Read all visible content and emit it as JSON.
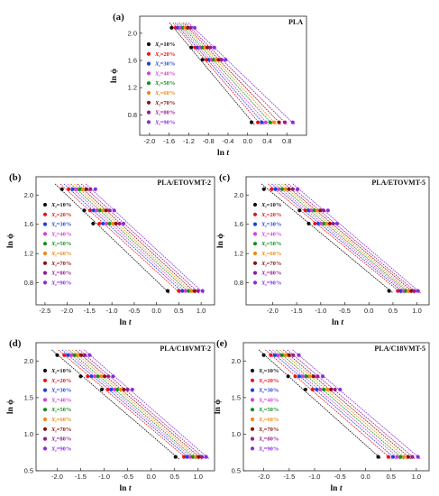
{
  "colors": {
    "X10": "#111111",
    "X20": "#e8141b",
    "X30": "#1f3fe0",
    "X40": "#d640d6",
    "X50": "#0f8f1a",
    "X60": "#f08a12",
    "X70": "#8b1010",
    "X80": "#9a1a8c",
    "X90": "#8a2be2"
  },
  "chart_data": [
    {
      "panel": "(a)",
      "title": "PLA",
      "type": "scatter",
      "xlabel": "ln t",
      "ylabel": "ln ϕ",
      "xlim": [
        -2.2,
        1.2
      ],
      "ylim": [
        0.5,
        2.25
      ],
      "xticks": [
        "-2.0",
        "-1.6",
        "-1.2",
        "-0.8",
        "-0.4",
        "0.0",
        "0.4",
        "0.8"
      ],
      "xtick_values": [
        -2.0,
        -1.6,
        -1.2,
        -0.8,
        -0.4,
        0.0,
        0.4,
        0.8
      ],
      "yticks": [
        "0.8",
        "1.2",
        "1.6",
        "2.0"
      ],
      "ytick_values": [
        0.8,
        1.2,
        1.6,
        2.0
      ],
      "y_levels": [
        2.08,
        1.79,
        1.61,
        0.69
      ],
      "series": [
        {
          "name": "X_t=10%",
          "color": "#111111",
          "x": [
            -1.55,
            -1.15,
            -0.92,
            0.08
          ]
        },
        {
          "name": "X_t=20%",
          "color": "#e8141b",
          "x": [
            -1.47,
            -1.07,
            -0.84,
            0.21
          ]
        },
        {
          "name": "X_t=30%",
          "color": "#1f3fe0",
          "x": [
            -1.42,
            -1.02,
            -0.79,
            0.29
          ]
        },
        {
          "name": "X_t=40%",
          "color": "#d640d6",
          "x": [
            -1.37,
            -0.97,
            -0.74,
            0.37
          ]
        },
        {
          "name": "X_t=50%",
          "color": "#0f8f1a",
          "x": [
            -1.32,
            -0.92,
            -0.69,
            0.46
          ]
        },
        {
          "name": "X_t=60%",
          "color": "#f08a12",
          "x": [
            -1.27,
            -0.87,
            -0.64,
            0.54
          ]
        },
        {
          "name": "X_t=70%",
          "color": "#8b1010",
          "x": [
            -1.22,
            -0.82,
            -0.59,
            0.64
          ]
        },
        {
          "name": "X_t=80%",
          "color": "#9a1a8c",
          "x": [
            -1.16,
            -0.76,
            -0.53,
            0.76
          ]
        },
        {
          "name": "X_t=90%",
          "color": "#8a2be2",
          "x": [
            -1.08,
            -0.68,
            -0.45,
            0.92
          ]
        }
      ]
    },
    {
      "panel": "(b)",
      "title": "PLA/ETOVMT-2",
      "type": "scatter",
      "xlabel": "ln t",
      "ylabel": "ln ϕ",
      "xlim": [
        -2.7,
        1.3
      ],
      "ylim": [
        0.5,
        2.25
      ],
      "xticks": [
        "-2.5",
        "-2.0",
        "-1.5",
        "-1.0",
        "-0.5",
        "0.0",
        "0.5",
        "1.0"
      ],
      "xtick_values": [
        -2.5,
        -2.0,
        -1.5,
        -1.0,
        -0.5,
        0.0,
        0.5,
        1.0
      ],
      "yticks": [
        "0.8",
        "1.2",
        "1.6",
        "2.0"
      ],
      "ytick_values": [
        0.8,
        1.2,
        1.6,
        2.0
      ],
      "y_levels": [
        2.08,
        1.79,
        1.61,
        0.69
      ],
      "series": [
        {
          "name": "X_t=10%",
          "color": "#111111",
          "x": [
            -2.12,
            -1.62,
            -1.42,
            0.25
          ]
        },
        {
          "name": "X_t=20%",
          "color": "#e8141b",
          "x": [
            -1.97,
            -1.49,
            -1.28,
            0.5
          ]
        },
        {
          "name": "X_t=30%",
          "color": "#1f3fe0",
          "x": [
            -1.88,
            -1.41,
            -1.2,
            0.58
          ]
        },
        {
          "name": "X_t=40%",
          "color": "#d640d6",
          "x": [
            -1.8,
            -1.34,
            -1.12,
            0.65
          ]
        },
        {
          "name": "X_t=50%",
          "color": "#0f8f1a",
          "x": [
            -1.72,
            -1.27,
            -1.05,
            0.72
          ]
        },
        {
          "name": "X_t=60%",
          "color": "#f08a12",
          "x": [
            -1.65,
            -1.2,
            -0.98,
            0.78
          ]
        },
        {
          "name": "X_t=70%",
          "color": "#8b1010",
          "x": [
            -1.57,
            -1.13,
            -0.91,
            0.85
          ]
        },
        {
          "name": "X_t=80%",
          "color": "#9a1a8c",
          "x": [
            -1.48,
            -1.05,
            -0.83,
            0.93
          ]
        },
        {
          "name": "X_t=90%",
          "color": "#8a2be2",
          "x": [
            -1.37,
            -0.95,
            -0.74,
            1.03
          ]
        }
      ]
    },
    {
      "panel": "(c)",
      "title": "PLA/ETOVMT-5",
      "type": "scatter",
      "xlabel": "ln t",
      "ylabel": "ln ϕ",
      "xlim": [
        -2.55,
        1.25
      ],
      "ylim": [
        0.5,
        2.25
      ],
      "xticks": [
        "-2.0",
        "-1.5",
        "-1.0",
        "-0.5",
        "0.0",
        "0.5",
        "1.0"
      ],
      "xtick_values": [
        -2.0,
        -1.5,
        -1.0,
        -0.5,
        0.0,
        0.5,
        1.0
      ],
      "yticks": [
        "0.8",
        "1.2",
        "1.6",
        "2.0"
      ],
      "ytick_values": [
        0.8,
        1.2,
        1.6,
        2.0
      ],
      "y_levels": [
        2.08,
        1.79,
        1.61,
        0.69
      ],
      "series": [
        {
          "name": "X_t=10%",
          "color": "#111111",
          "x": [
            -2.18,
            -1.44,
            -1.25,
            0.42
          ]
        },
        {
          "name": "X_t=20%",
          "color": "#e8141b",
          "x": [
            -2.02,
            -1.32,
            -1.12,
            0.6
          ]
        },
        {
          "name": "X_t=30%",
          "color": "#1f3fe0",
          "x": [
            -1.94,
            -1.25,
            -1.05,
            0.66
          ]
        },
        {
          "name": "X_t=40%",
          "color": "#d640d6",
          "x": [
            -1.87,
            -1.19,
            -0.99,
            0.72
          ]
        },
        {
          "name": "X_t=50%",
          "color": "#0f8f1a",
          "x": [
            -1.8,
            -1.13,
            -0.93,
            0.77
          ]
        },
        {
          "name": "X_t=60%",
          "color": "#f08a12",
          "x": [
            -1.73,
            -1.07,
            -0.87,
            0.82
          ]
        },
        {
          "name": "X_t=70%",
          "color": "#8b1010",
          "x": [
            -1.66,
            -1.01,
            -0.81,
            0.88
          ]
        },
        {
          "name": "X_t=80%",
          "color": "#9a1a8c",
          "x": [
            -1.58,
            -0.94,
            -0.74,
            0.94
          ]
        },
        {
          "name": "X_t=90%",
          "color": "#8a2be2",
          "x": [
            -1.48,
            -0.85,
            -0.66,
            1.02
          ]
        }
      ]
    },
    {
      "panel": "(d)",
      "title": "PLA/C18VMT-2",
      "type": "scatter",
      "xlabel": "ln t",
      "ylabel": "ln ϕ",
      "xlim": [
        -2.45,
        1.35
      ],
      "ylim": [
        0.5,
        2.25
      ],
      "xticks": [
        "-2.0",
        "-1.5",
        "-1.0",
        "-0.5",
        "0.0",
        "0.5",
        "1.0"
      ],
      "xtick_values": [
        -2.0,
        -1.5,
        -1.0,
        -0.5,
        0.0,
        0.5,
        1.0
      ],
      "yticks": [
        "0.5",
        "1.0",
        "1.5",
        "2.0"
      ],
      "ytick_values": [
        0.5,
        1.0,
        1.5,
        2.0
      ],
      "y_levels": [
        2.08,
        1.79,
        1.61,
        0.69
      ],
      "series": [
        {
          "name": "X_t=10%",
          "color": "#111111",
          "x": [
            -2.0,
            -1.5,
            -1.05,
            0.52
          ]
        },
        {
          "name": "X_t=20%",
          "color": "#e8141b",
          "x": [
            -1.85,
            -1.35,
            -0.92,
            0.7
          ]
        },
        {
          "name": "X_t=30%",
          "color": "#1f3fe0",
          "x": [
            -1.77,
            -1.27,
            -0.85,
            0.77
          ]
        },
        {
          "name": "X_t=40%",
          "color": "#d640d6",
          "x": [
            -1.7,
            -1.2,
            -0.78,
            0.83
          ]
        },
        {
          "name": "X_t=50%",
          "color": "#0f8f1a",
          "x": [
            -1.63,
            -1.13,
            -0.72,
            0.89
          ]
        },
        {
          "name": "X_t=60%",
          "color": "#f08a12",
          "x": [
            -1.56,
            -1.06,
            -0.65,
            0.95
          ]
        },
        {
          "name": "X_t=70%",
          "color": "#8b1010",
          "x": [
            -1.49,
            -0.99,
            -0.58,
            1.01
          ]
        },
        {
          "name": "X_t=80%",
          "color": "#9a1a8c",
          "x": [
            -1.41,
            -0.91,
            -0.5,
            1.08
          ]
        },
        {
          "name": "X_t=90%",
          "color": "#8a2be2",
          "x": [
            -1.31,
            -0.81,
            -0.4,
            1.17
          ]
        }
      ]
    },
    {
      "panel": "(e)",
      "title": "PLA/C18VMT-5",
      "type": "scatter",
      "xlabel": "ln t",
      "ylabel": "ln ϕ",
      "xlim": [
        -2.4,
        1.25
      ],
      "ylim": [
        0.5,
        2.25
      ],
      "xticks": [
        "-2.0",
        "-1.5",
        "-1.0",
        "-0.5",
        "0.0",
        "0.5",
        "1.0"
      ],
      "xtick_values": [
        -2.0,
        -1.5,
        -1.0,
        -0.5,
        0.0,
        0.5,
        1.0
      ],
      "yticks": [
        "0.5",
        "1.0",
        "1.5",
        "2.0"
      ],
      "ytick_values": [
        0.5,
        1.0,
        1.5,
        2.0
      ],
      "y_levels": [
        2.08,
        1.79,
        1.61,
        0.69
      ],
      "series": [
        {
          "name": "X_t=10%",
          "color": "#111111",
          "x": [
            -2.0,
            -1.52,
            -1.18,
            0.25
          ]
        },
        {
          "name": "X_t=20%",
          "color": "#e8141b",
          "x": [
            -1.86,
            -1.38,
            -1.04,
            0.45
          ]
        },
        {
          "name": "X_t=30%",
          "color": "#1f3fe0",
          "x": [
            -1.78,
            -1.3,
            -0.96,
            0.54
          ]
        },
        {
          "name": "X_t=40%",
          "color": "#d640d6",
          "x": [
            -1.71,
            -1.23,
            -0.89,
            0.62
          ]
        },
        {
          "name": "X_t=50%",
          "color": "#0f8f1a",
          "x": [
            -1.64,
            -1.16,
            -0.82,
            0.69
          ]
        },
        {
          "name": "X_t=60%",
          "color": "#f08a12",
          "x": [
            -1.57,
            -1.09,
            -0.75,
            0.76
          ]
        },
        {
          "name": "X_t=70%",
          "color": "#8b1010",
          "x": [
            -1.5,
            -1.02,
            -0.68,
            0.84
          ]
        },
        {
          "name": "X_t=80%",
          "color": "#9a1a8c",
          "x": [
            -1.42,
            -0.94,
            -0.6,
            0.92
          ]
        },
        {
          "name": "X_t=90%",
          "color": "#8a2be2",
          "x": [
            -1.31,
            -0.84,
            -0.5,
            1.03
          ]
        }
      ]
    }
  ]
}
